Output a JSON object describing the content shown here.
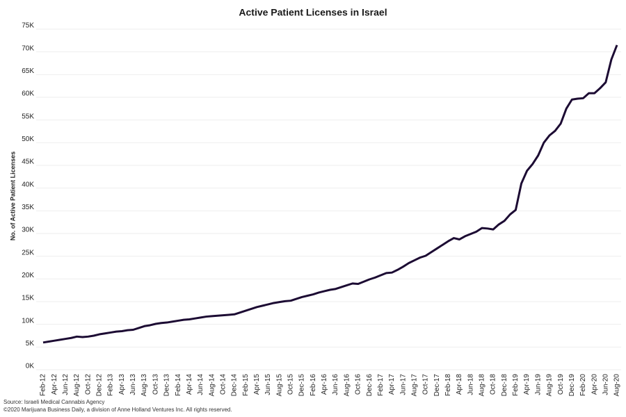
{
  "chart_data": {
    "type": "line",
    "title": "Active Patient Licenses in Israel",
    "y_label": "No. of Active Patient Licenses",
    "source": "Source: Israeli Medical Cannabis Agency",
    "copyright": "©2020 Marijuana Business Daily, a division of Anne Holland Ventures Inc. All rights reserved.",
    "categories": [
      "Feb-12",
      null,
      "Apr-12",
      null,
      "Jun-12",
      null,
      "Aug-12",
      null,
      "Oct-12",
      null,
      "Dec-12",
      null,
      "Feb-13",
      null,
      "Apr-13",
      null,
      "Jun-13",
      null,
      "Aug-13",
      null,
      "Oct-13",
      null,
      "Dec-13",
      null,
      "Feb-14",
      null,
      "Apr-14",
      null,
      "Jun-14",
      null,
      "Aug-14",
      null,
      "Oct-14",
      null,
      "Dec-14",
      null,
      "Feb-15",
      null,
      "Apr-15",
      null,
      "Jun-15",
      null,
      "Aug-15",
      null,
      "Oct-15",
      null,
      "Dec-15",
      null,
      "Feb-16",
      null,
      "Apr-16",
      null,
      "Jun-16",
      null,
      "Aug-16",
      null,
      "Oct-16",
      null,
      "Dec-16",
      null,
      "Feb-17",
      null,
      "Apr-17",
      null,
      "Jun-17",
      null,
      "Aug-17",
      null,
      "Oct-17",
      null,
      "Dec-17",
      null,
      "Feb-18",
      null,
      "Apr-18",
      null,
      "Jun-18",
      null,
      "Aug-18",
      null,
      "Oct-18",
      null,
      "Dec-18",
      null,
      "Feb-19",
      null,
      "Apr-19",
      null,
      "Jun-19",
      null,
      "Aug-19",
      null,
      "Oct-19",
      null,
      "Dec-19",
      null,
      "Feb-20",
      null,
      "Apr-20",
      null,
      "Jun-20",
      null,
      "Aug-20"
    ],
    "series": [
      {
        "name": "Active Patient Licenses",
        "color": "#1c0b33",
        "values": [
          6000,
          6200,
          6400,
          6600,
          6800,
          7000,
          7300,
          7200,
          7300,
          7500,
          7800,
          8000,
          8200,
          8400,
          8500,
          8700,
          8800,
          9200,
          9600,
          9800,
          10100,
          10300,
          10400,
          10600,
          10800,
          11000,
          11100,
          11300,
          11500,
          11700,
          11800,
          11900,
          12000,
          12100,
          12200,
          12600,
          13000,
          13400,
          13800,
          14100,
          14400,
          14700,
          14900,
          15100,
          15200,
          15600,
          16000,
          16300,
          16600,
          17000,
          17300,
          17600,
          17800,
          18200,
          18600,
          19000,
          18900,
          19400,
          19900,
          20300,
          20800,
          21300,
          21400,
          22000,
          22700,
          23500,
          24100,
          24700,
          25100,
          25900,
          26700,
          27500,
          28300,
          29000,
          28700,
          29400,
          29900,
          30400,
          31200,
          31100,
          30900,
          32000,
          32800,
          34200,
          35200,
          41000,
          43800,
          45300,
          47200,
          50000,
          51600,
          52600,
          54200,
          57500,
          59500,
          59700,
          59800,
          60900,
          60900,
          62000,
          63300,
          68300,
          71500
        ]
      }
    ],
    "ylim": [
      0,
      75000
    ],
    "yticks": [
      {
        "value": 0,
        "label": "0K"
      },
      {
        "value": 5000,
        "label": "5K"
      },
      {
        "value": 10000,
        "label": "10K"
      },
      {
        "value": 15000,
        "label": "15K"
      },
      {
        "value": 20000,
        "label": "20K"
      },
      {
        "value": 25000,
        "label": "25K"
      },
      {
        "value": 30000,
        "label": "30K"
      },
      {
        "value": 35000,
        "label": "35K"
      },
      {
        "value": 40000,
        "label": "40K"
      },
      {
        "value": 45000,
        "label": "45K"
      },
      {
        "value": 50000,
        "label": "50K"
      },
      {
        "value": 55000,
        "label": "55K"
      },
      {
        "value": 60000,
        "label": "60K"
      },
      {
        "value": 65000,
        "label": "65K"
      },
      {
        "value": 70000,
        "label": "70K"
      },
      {
        "value": 75000,
        "label": "75K"
      }
    ],
    "grid": true
  }
}
